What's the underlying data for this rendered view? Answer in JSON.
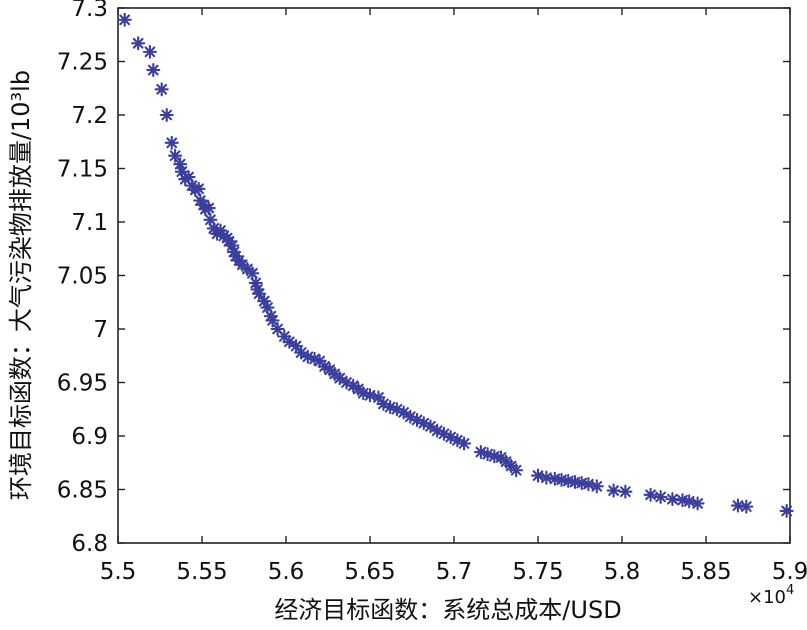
{
  "chart_data": {
    "type": "scatter",
    "xlabel": "经济目标函数：系统总成本/USD",
    "ylabel": "环境目标函数：大气污染物排放量/10³lb",
    "x_multiplier_base": "×10",
    "x_multiplier_exp": "4",
    "xlim": [
      5.5,
      5.9
    ],
    "ylim": [
      6.8,
      7.3
    ],
    "x_ticks": [
      "5.5",
      "5.55",
      "5.6",
      "5.65",
      "5.7",
      "5.75",
      "5.8",
      "5.85",
      "5.9"
    ],
    "y_ticks": [
      "6.8",
      "6.85",
      "6.9",
      "6.95",
      "7",
      "7.05",
      "7.1",
      "7.15",
      "7.2",
      "7.25",
      "7.3"
    ],
    "marker_color": "#3a3f9e",
    "marker": "asterisk",
    "grid": false,
    "points": [
      [
        5.504,
        7.289
      ],
      [
        5.512,
        7.267
      ],
      [
        5.519,
        7.259
      ],
      [
        5.521,
        7.242
      ],
      [
        5.526,
        7.224
      ],
      [
        5.529,
        7.2
      ],
      [
        5.532,
        7.174
      ],
      [
        5.534,
        7.162
      ],
      [
        5.537,
        7.154
      ],
      [
        5.538,
        7.147
      ],
      [
        5.54,
        7.14
      ],
      [
        5.542,
        7.142
      ],
      [
        5.544,
        7.134
      ],
      [
        5.546,
        7.13
      ],
      [
        5.548,
        7.131
      ],
      [
        5.549,
        7.12
      ],
      [
        5.551,
        7.116
      ],
      [
        5.552,
        7.112
      ],
      [
        5.554,
        7.113
      ],
      [
        5.555,
        7.102
      ],
      [
        5.557,
        7.094
      ],
      [
        5.559,
        7.089
      ],
      [
        5.561,
        7.092
      ],
      [
        5.563,
        7.087
      ],
      [
        5.565,
        7.085
      ],
      [
        5.566,
        7.082
      ],
      [
        5.568,
        7.078
      ],
      [
        5.569,
        7.072
      ],
      [
        5.57,
        7.068
      ],
      [
        5.572,
        7.064
      ],
      [
        5.574,
        7.06
      ],
      [
        5.577,
        7.056
      ],
      [
        5.58,
        7.052
      ],
      [
        5.582,
        7.043
      ],
      [
        5.583,
        7.037
      ],
      [
        5.584,
        7.033
      ],
      [
        5.587,
        7.026
      ],
      [
        5.589,
        7.02
      ],
      [
        5.591,
        7.012
      ],
      [
        5.592,
        7.008
      ],
      [
        5.595,
        7.0
      ],
      [
        5.599,
        6.993
      ],
      [
        5.602,
        6.988
      ],
      [
        5.606,
        6.984
      ],
      [
        5.609,
        6.978
      ],
      [
        5.613,
        6.974
      ],
      [
        5.617,
        6.972
      ],
      [
        5.62,
        6.97
      ],
      [
        5.623,
        6.965
      ],
      [
        5.626,
        6.962
      ],
      [
        5.629,
        6.958
      ],
      [
        5.632,
        6.954
      ],
      [
        5.636,
        6.95
      ],
      [
        5.64,
        6.947
      ],
      [
        5.643,
        6.944
      ],
      [
        5.646,
        6.94
      ],
      [
        5.65,
        6.938
      ],
      [
        5.655,
        6.936
      ],
      [
        5.658,
        6.93
      ],
      [
        5.662,
        6.927
      ],
      [
        5.666,
        6.925
      ],
      [
        5.67,
        6.922
      ],
      [
        5.674,
        6.918
      ],
      [
        5.678,
        6.915
      ],
      [
        5.682,
        6.912
      ],
      [
        5.686,
        6.909
      ],
      [
        5.69,
        6.905
      ],
      [
        5.694,
        6.902
      ],
      [
        5.698,
        6.899
      ],
      [
        5.702,
        6.896
      ],
      [
        5.706,
        6.893
      ],
      [
        5.716,
        6.885
      ],
      [
        5.72,
        6.883
      ],
      [
        5.724,
        6.881
      ],
      [
        5.728,
        6.88
      ],
      [
        5.731,
        6.876
      ],
      [
        5.734,
        6.872
      ],
      [
        5.737,
        6.868
      ],
      [
        5.75,
        6.863
      ],
      [
        5.755,
        6.861
      ],
      [
        5.76,
        6.86
      ],
      [
        5.764,
        6.859
      ],
      [
        5.768,
        6.858
      ],
      [
        5.772,
        6.857
      ],
      [
        5.776,
        6.856
      ],
      [
        5.78,
        6.855
      ],
      [
        5.785,
        6.853
      ],
      [
        5.795,
        6.849
      ],
      [
        5.802,
        6.848
      ],
      [
        5.817,
        6.845
      ],
      [
        5.823,
        6.843
      ],
      [
        5.83,
        6.841
      ],
      [
        5.836,
        6.84
      ],
      [
        5.84,
        6.839
      ],
      [
        5.845,
        6.837
      ],
      [
        5.869,
        6.835
      ],
      [
        5.874,
        6.834
      ],
      [
        5.898,
        6.83
      ]
    ]
  }
}
